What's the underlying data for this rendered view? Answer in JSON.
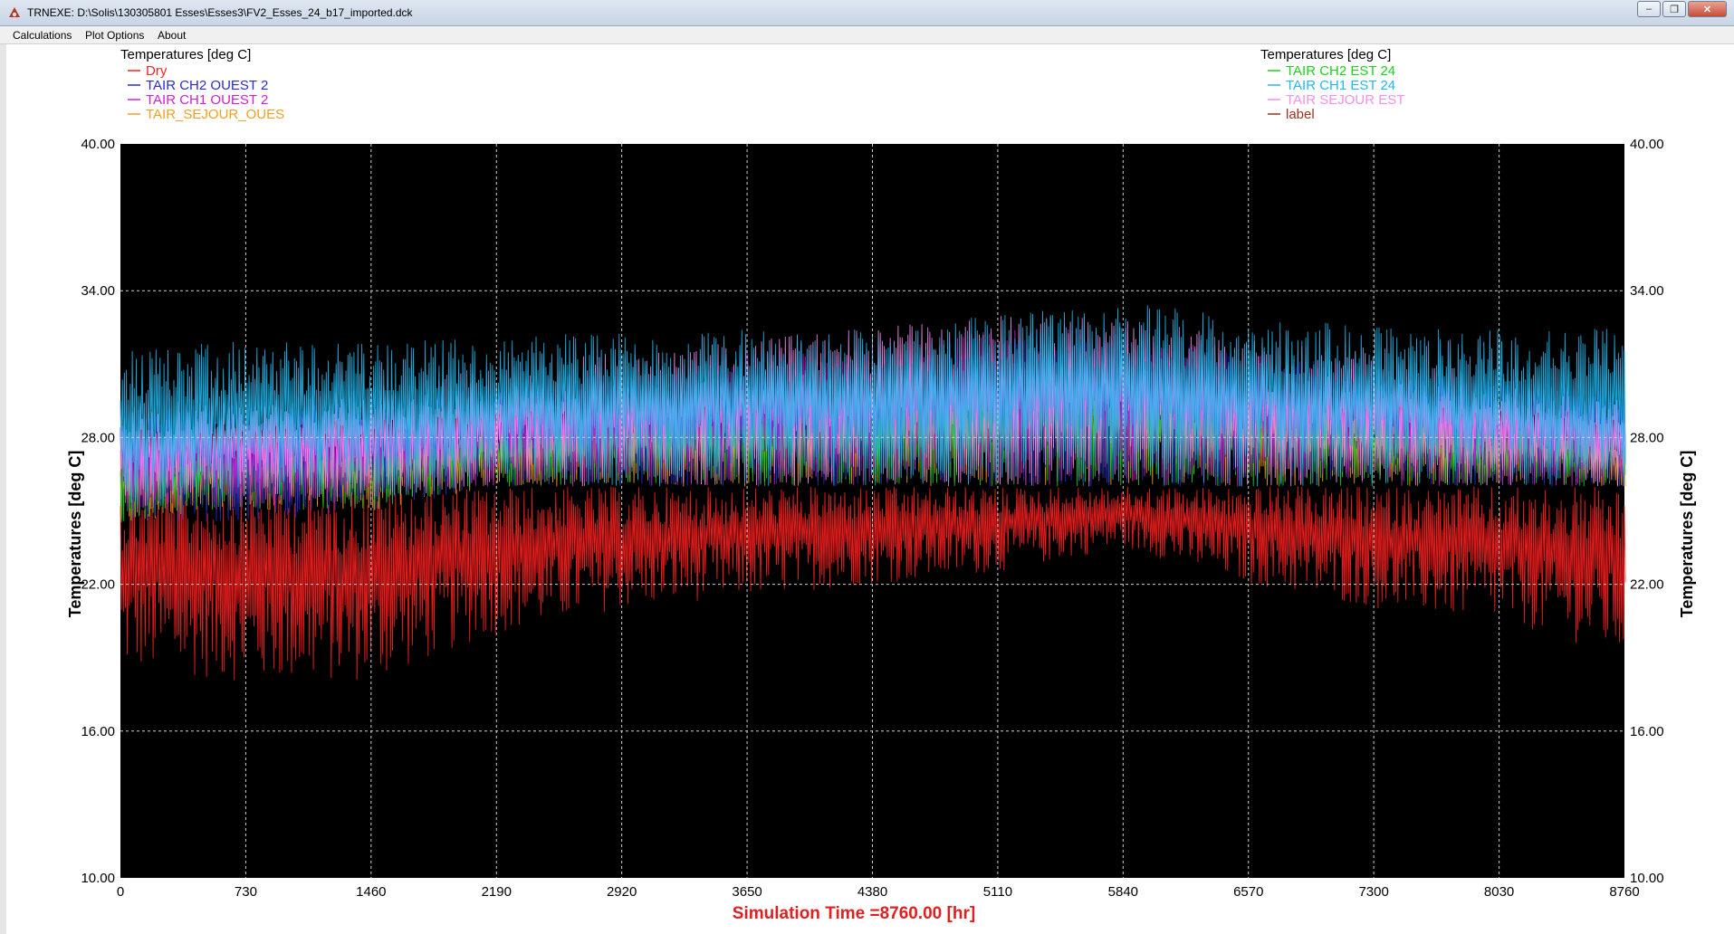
{
  "window": {
    "title": "TRNEXE: D:\\Solis\\130305801 Esses\\Esses3\\FV2_Esses_24_b17_imported.dck"
  },
  "menu": {
    "items": [
      "Calculations",
      "Plot Options",
      "About"
    ]
  },
  "legend_left": {
    "header": "Temperatures   [deg C]",
    "entries": [
      {
        "label": "Dry",
        "color": "#ff2020"
      },
      {
        "label": "TAIR  CH2  OUEST  2",
        "color": "#2a2ad0"
      },
      {
        "label": "TAIR  CH1  OUEST  2",
        "color": "#d020d0"
      },
      {
        "label": "TAIR_SEJOUR_OUES",
        "color": "#f0a020"
      }
    ]
  },
  "legend_right": {
    "header": "Temperatures   [deg C]",
    "entries": [
      {
        "label": "TAIR  CH2  EST  24",
        "color": "#20d020"
      },
      {
        "label": "TAIR  CH1  EST  24",
        "color": "#20b8f0"
      },
      {
        "label": "TAIR  SEJOUR  EST",
        "color": "#f090f0"
      },
      {
        "label": "label",
        "color": "#a03020"
      }
    ]
  },
  "chart_data": {
    "type": "line",
    "ylabel_left": "Temperatures    [deg C]",
    "ylabel_right": "Temperatures    [deg C]",
    "xlabel": "Simulation Time =8760.00 [hr]",
    "xlim": [
      0,
      8760
    ],
    "ylim": [
      10,
      40
    ],
    "x_ticks": [
      0,
      730,
      1460,
      2190,
      2920,
      3650,
      4380,
      5110,
      5840,
      6570,
      7300,
      8030,
      8760
    ],
    "y_ticks": [
      10,
      16,
      22,
      28,
      34,
      40
    ],
    "x_tick_labels": [
      "0",
      "730",
      "1460",
      "2190",
      "2920",
      "3650",
      "4380",
      "5110",
      "5840",
      "6570",
      "7300",
      "8030",
      "8760"
    ],
    "y_tick_labels": [
      "10.00",
      "16.00",
      "22.00",
      "28.00",
      "34.00",
      "40.00"
    ],
    "grid": true,
    "background": "#000000",
    "series": [
      {
        "name": "Dry",
        "color": "#ff2020",
        "envelope_x": [
          0,
          730,
          1460,
          2190,
          2920,
          3650,
          4380,
          5110,
          5840,
          6570,
          7300,
          8030,
          8760
        ],
        "envelope_min": [
          18.5,
          18.0,
          18.0,
          20.0,
          21.0,
          21.5,
          22.0,
          22.5,
          23.5,
          22.0,
          21.0,
          20.5,
          19.0
        ],
        "envelope_max": [
          26.0,
          26.0,
          26.0,
          26.0,
          26.0,
          26.0,
          26.0,
          26.0,
          26.0,
          26.0,
          26.0,
          26.0,
          26.0
        ]
      },
      {
        "name": "TAIR  CH2  OUEST  2",
        "color": "#2a2ad0",
        "envelope_x": [
          0,
          730,
          1460,
          2190,
          2920,
          3650,
          4380,
          5110,
          5840,
          6570,
          7300,
          8030,
          8760
        ],
        "envelope_min": [
          24.5,
          24.5,
          25.0,
          26.0,
          26.0,
          26.0,
          26.0,
          26.0,
          26.0,
          26.0,
          26.0,
          26.0,
          26.0
        ],
        "envelope_max": [
          29.0,
          29.5,
          29.5,
          30.0,
          30.5,
          31.0,
          31.0,
          32.0,
          32.0,
          31.5,
          31.0,
          30.5,
          30.0
        ]
      },
      {
        "name": "TAIR  CH1  OUEST  2",
        "color": "#d020d0",
        "envelope_x": [
          0,
          730,
          1460,
          2190,
          2920,
          3650,
          4380,
          5110,
          5840,
          6570,
          7300,
          8030,
          8760
        ],
        "envelope_min": [
          25.0,
          25.0,
          25.5,
          26.0,
          26.0,
          26.0,
          26.0,
          26.0,
          26.0,
          26.0,
          26.0,
          26.0,
          26.0
        ],
        "envelope_max": [
          28.5,
          29.0,
          29.0,
          30.0,
          30.5,
          31.5,
          31.5,
          32.5,
          32.5,
          31.5,
          31.0,
          30.0,
          29.5
        ]
      },
      {
        "name": "TAIR_SEJOUR_OUES",
        "color": "#f0a020",
        "envelope_x": [
          0,
          730,
          1460,
          2190,
          2920,
          3650,
          4380,
          5110,
          5840,
          6570,
          7300,
          8030,
          8760
        ],
        "envelope_min": [
          24.5,
          25.0,
          25.0,
          26.0,
          26.0,
          26.0,
          26.0,
          26.0,
          26.0,
          26.0,
          26.0,
          26.0,
          26.0
        ],
        "envelope_max": [
          27.5,
          28.0,
          28.0,
          28.5,
          29.0,
          29.5,
          29.5,
          30.5,
          30.5,
          29.5,
          29.0,
          28.5,
          28.0
        ]
      },
      {
        "name": "TAIR  CH2  EST  24",
        "color": "#20d020",
        "envelope_x": [
          0,
          730,
          1460,
          2190,
          2920,
          3650,
          4380,
          5110,
          5840,
          6570,
          7300,
          8030,
          8760
        ],
        "envelope_min": [
          24.5,
          25.0,
          25.0,
          26.0,
          26.0,
          26.0,
          26.0,
          26.0,
          26.0,
          26.0,
          26.0,
          26.0,
          26.0
        ],
        "envelope_max": [
          27.5,
          28.0,
          28.0,
          28.5,
          29.0,
          29.5,
          30.0,
          30.5,
          30.5,
          30.0,
          29.5,
          29.0,
          28.5
        ]
      },
      {
        "name": "TAIR  CH1  EST  24",
        "color": "#20b8f0",
        "envelope_x": [
          0,
          730,
          1460,
          2190,
          2920,
          3650,
          4380,
          5110,
          5840,
          6570,
          7300,
          8030,
          8760
        ],
        "envelope_min": [
          25.0,
          25.5,
          25.5,
          26.0,
          26.0,
          26.0,
          26.0,
          26.0,
          26.0,
          26.0,
          26.0,
          26.0,
          26.0
        ],
        "envelope_max": [
          31.5,
          32.0,
          32.0,
          32.0,
          32.5,
          32.5,
          32.5,
          33.0,
          33.5,
          33.0,
          32.5,
          32.5,
          32.5
        ]
      },
      {
        "name": "TAIR  SEJOUR  EST",
        "color": "#f090f0",
        "envelope_x": [
          0,
          730,
          1460,
          2190,
          2920,
          3650,
          4380,
          5110,
          5840,
          6570,
          7300,
          8030,
          8760
        ],
        "envelope_min": [
          25.0,
          25.5,
          25.5,
          26.0,
          26.0,
          26.0,
          26.0,
          26.0,
          26.0,
          26.0,
          26.0,
          26.0,
          26.0
        ],
        "envelope_max": [
          29.5,
          29.5,
          30.0,
          31.0,
          31.5,
          32.0,
          32.5,
          33.0,
          33.0,
          32.0,
          31.5,
          30.5,
          29.5
        ]
      }
    ]
  }
}
